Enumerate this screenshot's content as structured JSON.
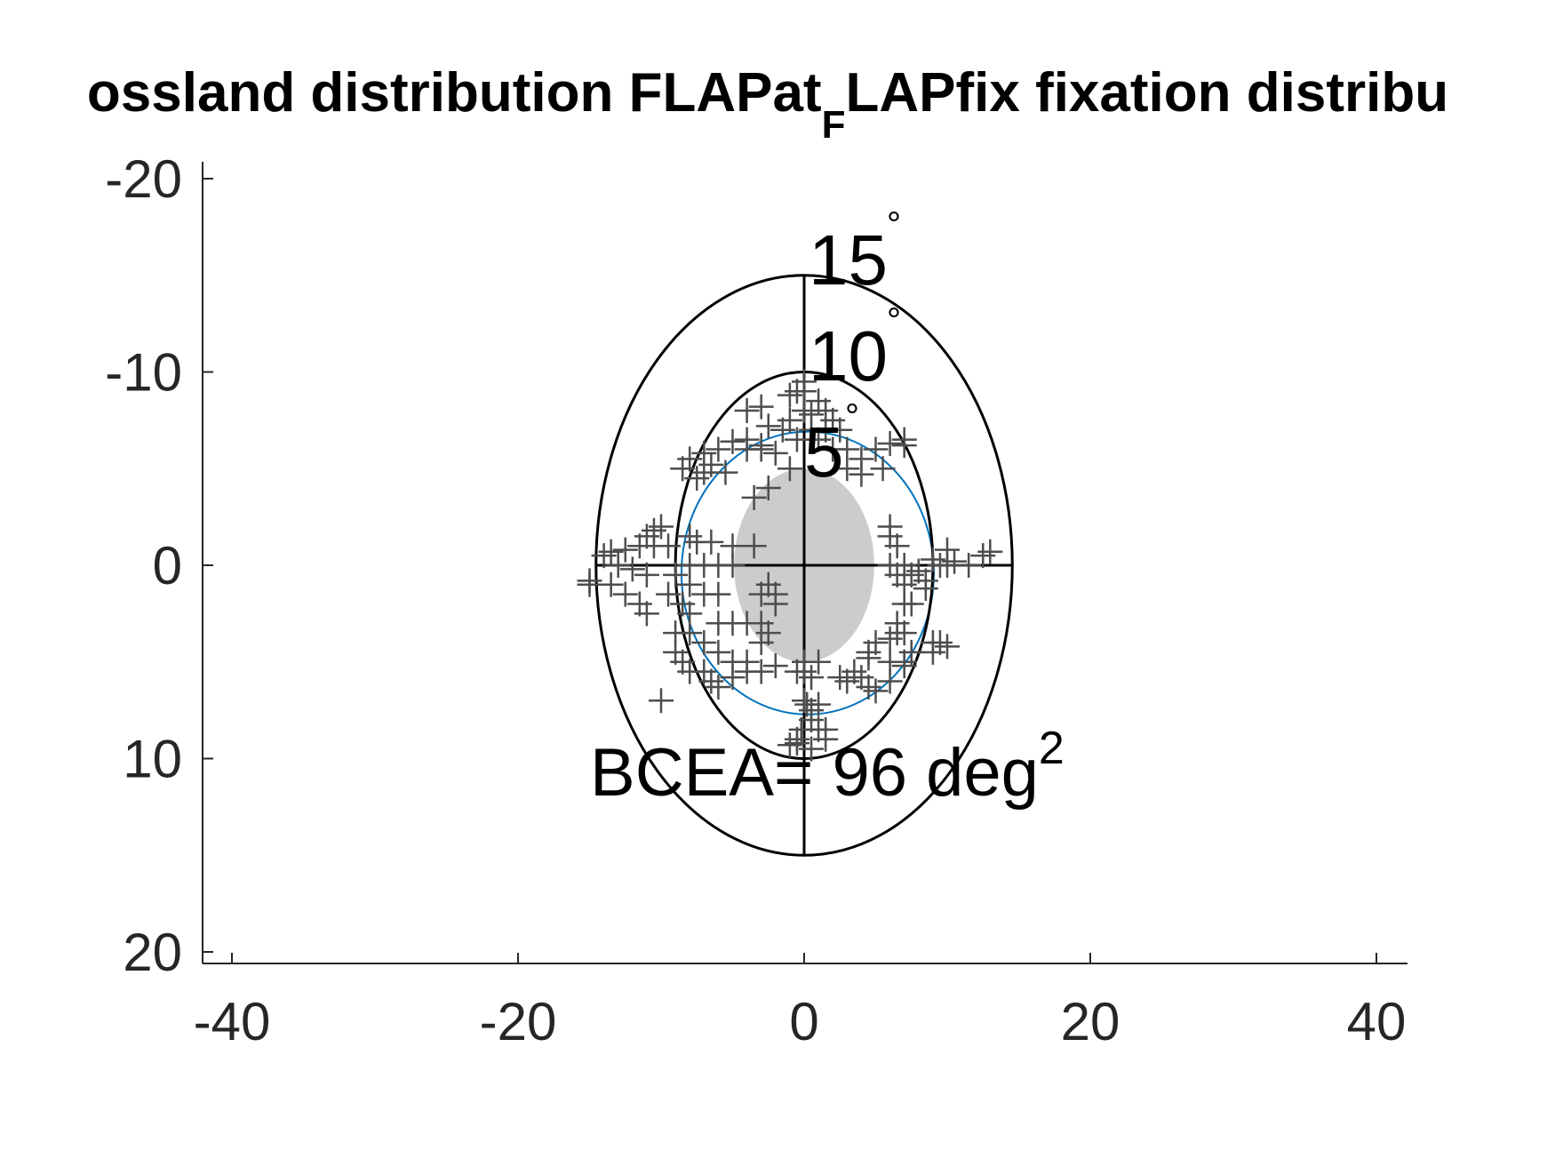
{
  "chart_data": {
    "type": "scatter",
    "title": {
      "main": "ossland distribution FLAPat",
      "subscript": "F",
      "rest": "LAPfix fixation distribu"
    },
    "xlim": [
      -42,
      42
    ],
    "ylim": [
      21,
      -20.5
    ],
    "y_direction": "reversed",
    "xticks": [
      -40,
      -20,
      0,
      20,
      40
    ],
    "yticks": [
      -20,
      -10,
      0,
      10,
      20
    ],
    "xtick_labels": [
      "-40",
      "-20",
      "0",
      "20",
      "40"
    ],
    "ytick_labels": [
      "-20",
      "-10",
      "0",
      "10",
      "20"
    ],
    "axes_box": false,
    "grid": false,
    "polar_rings": {
      "radii": [
        5,
        10,
        15
      ],
      "labels": [
        {
          "text": "15",
          "radius": 15
        },
        {
          "text": "10",
          "radius": 10
        },
        {
          "text": "5",
          "radius": 5
        }
      ],
      "degree_symbol": "°",
      "color": "#000000"
    },
    "shaded_region": {
      "shape": "ellipse",
      "center": [
        0,
        0
      ],
      "rx": 5,
      "ry": 5,
      "color": "#cccccc"
    },
    "bcea_ellipse": {
      "center": [
        -0.5,
        0.4
      ],
      "rx": 9.8,
      "ry": 7.7,
      "color": "#0072bd"
    },
    "bcea_label": {
      "text": "BCEA= 96 deg",
      "superscript": "2"
    },
    "series": [
      {
        "marker": "+",
        "color": "#4d4d4d",
        "points": [
          [
            0,
            -9.5
          ],
          [
            0,
            -9
          ],
          [
            -0.5,
            -9
          ],
          [
            -1,
            -8.8
          ],
          [
            1,
            -8.5
          ],
          [
            0,
            -8
          ],
          [
            -1,
            -7.5
          ],
          [
            0.5,
            -7.8
          ],
          [
            1.5,
            -8
          ],
          [
            2,
            -7.5
          ],
          [
            -3,
            -8.2
          ],
          [
            -4,
            -8
          ],
          [
            -2.5,
            -7.2
          ],
          [
            -1.5,
            -7
          ],
          [
            0.5,
            -7
          ],
          [
            1.5,
            -7
          ],
          [
            2.5,
            -7
          ],
          [
            1,
            -6.5
          ],
          [
            -0.5,
            -6.5
          ],
          [
            -5,
            -6.4
          ],
          [
            -4,
            -6.5
          ],
          [
            -4,
            -6
          ],
          [
            -6,
            -6
          ],
          [
            -7,
            -5.8
          ],
          [
            -8,
            -5.5
          ],
          [
            -8.5,
            -5
          ],
          [
            -7,
            -4.8
          ],
          [
            -7.5,
            -4.5
          ],
          [
            -6.5,
            -5.2
          ],
          [
            -5.5,
            -4.8
          ],
          [
            -3,
            -6.2
          ],
          [
            -3,
            -6
          ],
          [
            -2,
            -5.8
          ],
          [
            2,
            -6
          ],
          [
            3,
            -6
          ],
          [
            4,
            -5.5
          ],
          [
            5,
            -6
          ],
          [
            6,
            -6.3
          ],
          [
            7,
            -6.5
          ],
          [
            7,
            -6.2
          ],
          [
            3,
            -5
          ],
          [
            4,
            -4.7
          ],
          [
            5.5,
            -5
          ],
          [
            -3.5,
            -3.5
          ],
          [
            -2.5,
            -4
          ],
          [
            -1,
            -5
          ],
          [
            -10,
            -2
          ],
          [
            -11,
            -1.5
          ],
          [
            -10.5,
            -1.8
          ],
          [
            -9.5,
            -1
          ],
          [
            -10.5,
            -1
          ],
          [
            -11.5,
            -1
          ],
          [
            -12.5,
            -0.8
          ],
          [
            -13.5,
            -0.7
          ],
          [
            -14,
            -0.5
          ],
          [
            -13,
            0
          ],
          [
            -12,
            0.2
          ],
          [
            -11,
            0.5
          ],
          [
            -9,
            0.5
          ],
          [
            -8,
            0
          ],
          [
            -7,
            0
          ],
          [
            -6,
            0
          ],
          [
            -5,
            0
          ],
          [
            -8,
            -1.5
          ],
          [
            -7.5,
            -1.2
          ],
          [
            -6.5,
            -1.2
          ],
          [
            -5,
            -1
          ],
          [
            -3.5,
            -1
          ],
          [
            -15,
            0.8
          ],
          [
            -15,
            1
          ],
          [
            -13.5,
            1
          ],
          [
            -12.5,
            1.5
          ],
          [
            -11.5,
            2
          ],
          [
            -11,
            2.5
          ],
          [
            -9.5,
            1.5
          ],
          [
            -8,
            1
          ],
          [
            -7,
            1.5
          ],
          [
            -6,
            1.5
          ],
          [
            -8.5,
            2
          ],
          [
            -8,
            2.5
          ],
          [
            -6,
            3
          ],
          [
            -5,
            3
          ],
          [
            -4,
            3
          ],
          [
            -3,
            3
          ],
          [
            -8,
            3.5
          ],
          [
            -9,
            3.5
          ],
          [
            -7,
            4
          ],
          [
            -6,
            4.5
          ],
          [
            -5,
            5
          ],
          [
            -4,
            5
          ],
          [
            -9,
            4.5
          ],
          [
            -8.5,
            5
          ],
          [
            -8,
            5.5
          ],
          [
            -7,
            5.5
          ],
          [
            -6.5,
            6
          ],
          [
            -6,
            6.3
          ],
          [
            -5,
            5.8
          ],
          [
            -4,
            5.5
          ],
          [
            -3,
            5.5
          ],
          [
            -2,
            5.2
          ],
          [
            -10,
            7
          ],
          [
            -2.5,
            3.5
          ],
          [
            -3,
            4
          ],
          [
            6,
            -2
          ],
          [
            6,
            -1.5
          ],
          [
            6.5,
            -1
          ],
          [
            6,
            0
          ],
          [
            7,
            0
          ],
          [
            6.5,
            0.5
          ],
          [
            7.5,
            0.5
          ],
          [
            8,
            0.3
          ],
          [
            9,
            -0.3
          ],
          [
            9.5,
            0
          ],
          [
            10,
            0
          ],
          [
            10.5,
            -0.2
          ],
          [
            11.5,
            0
          ],
          [
            12.5,
            -0.5
          ],
          [
            13,
            -0.7
          ],
          [
            10,
            -0.8
          ],
          [
            8.5,
            0.8
          ],
          [
            8.5,
            1.2
          ],
          [
            7,
            1
          ],
          [
            7.5,
            2
          ],
          [
            7,
            2
          ],
          [
            6.5,
            3
          ],
          [
            6.5,
            3.5
          ],
          [
            6,
            3.8
          ],
          [
            7,
            3.5
          ],
          [
            5,
            4
          ],
          [
            4.5,
            4.5
          ],
          [
            4.5,
            4.8
          ],
          [
            6,
            5
          ],
          [
            7,
            5
          ],
          [
            7.5,
            4.5
          ],
          [
            6,
            6
          ],
          [
            5,
            6.5
          ],
          [
            4.5,
            6.3
          ],
          [
            4,
            5.8
          ],
          [
            3.5,
            5.5
          ],
          [
            3,
            6
          ],
          [
            2.5,
            5.8
          ],
          [
            9,
            4
          ],
          [
            9.5,
            4
          ],
          [
            10,
            4.2
          ],
          [
            9,
            4.5
          ],
          [
            7,
            5.2
          ],
          [
            0,
            5
          ],
          [
            0,
            5.5
          ],
          [
            0.5,
            5.8
          ],
          [
            1,
            5
          ],
          [
            -0.5,
            5.5
          ],
          [
            0,
            7
          ],
          [
            0.5,
            7.5
          ],
          [
            0.2,
            7.2
          ],
          [
            1,
            7.2
          ],
          [
            0.5,
            8
          ],
          [
            1,
            8.5
          ],
          [
            1.5,
            8.5
          ],
          [
            1.5,
            9
          ],
          [
            -0.5,
            9
          ],
          [
            -1,
            9.3
          ],
          [
            -0.5,
            9.2
          ],
          [
            0.5,
            9.5
          ],
          [
            -0.2,
            8.5
          ],
          [
            -2,
            2
          ],
          [
            -2,
            1.5
          ],
          [
            -2.5,
            1
          ],
          [
            -3,
            1.5
          ]
        ]
      }
    ]
  }
}
